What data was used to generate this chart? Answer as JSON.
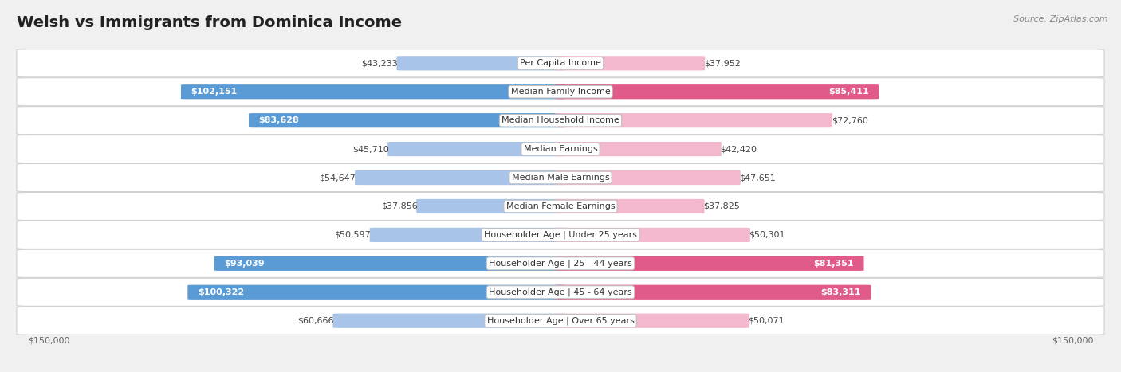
{
  "title": "Welsh vs Immigrants from Dominica Income",
  "source": "Source: ZipAtlas.com",
  "categories": [
    "Per Capita Income",
    "Median Family Income",
    "Median Household Income",
    "Median Earnings",
    "Median Male Earnings",
    "Median Female Earnings",
    "Householder Age | Under 25 years",
    "Householder Age | 25 - 44 years",
    "Householder Age | 45 - 64 years",
    "Householder Age | Over 65 years"
  ],
  "welsh_values": [
    43233,
    102151,
    83628,
    45710,
    54647,
    37856,
    50597,
    93039,
    100322,
    60666
  ],
  "dominica_values": [
    37952,
    85411,
    72760,
    42420,
    47651,
    37825,
    50301,
    81351,
    83311,
    50071
  ],
  "welsh_labels": [
    "$43,233",
    "$102,151",
    "$83,628",
    "$45,710",
    "$54,647",
    "$37,856",
    "$50,597",
    "$93,039",
    "$100,322",
    "$60,666"
  ],
  "dominica_labels": [
    "$37,952",
    "$85,411",
    "$72,760",
    "$42,420",
    "$47,651",
    "$37,825",
    "$50,301",
    "$81,351",
    "$83,311",
    "$50,071"
  ],
  "welsh_color_light": "#a8c4e8",
  "welsh_color_dark": "#5b9bd5",
  "dominica_color_light": "#f4b8ce",
  "dominica_color_dark": "#e05a8a",
  "max_value": 150000,
  "bg_color": "#f0f0f0",
  "row_bg_even": "#ffffff",
  "row_bg_odd": "#f5f5f5",
  "title_fontsize": 14,
  "label_fontsize": 8,
  "category_fontsize": 8,
  "legend_fontsize": 9,
  "welsh_large_threshold": 75000,
  "dominica_large_threshold": 75000
}
